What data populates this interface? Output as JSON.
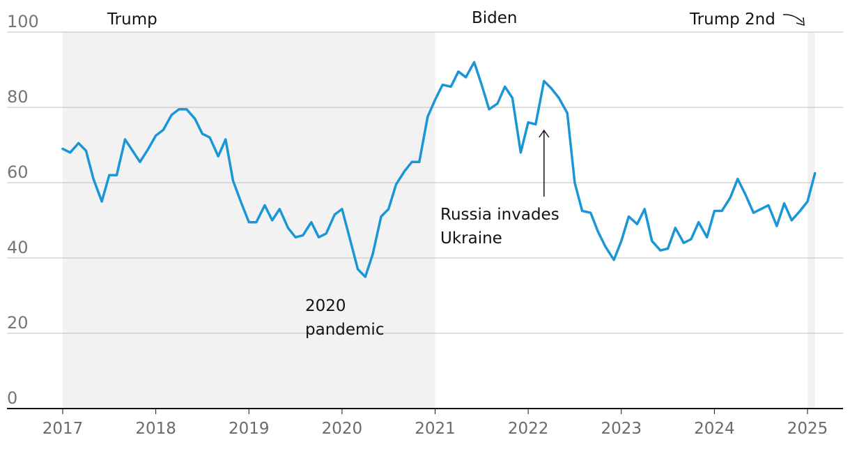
{
  "chart_data": {
    "type": "line",
    "title": "",
    "xlabel": "",
    "ylabel": "",
    "ylim": [
      0,
      100
    ],
    "xlim": [
      2017,
      2025.4
    ],
    "yticks": [
      0,
      20,
      40,
      60,
      80,
      100
    ],
    "ytick_labels": [
      "0",
      "20",
      "40",
      "60",
      "80",
      "100"
    ],
    "xticks": [
      2017,
      2018,
      2019,
      2020,
      2021,
      2022,
      2023,
      2024,
      2025
    ],
    "xtick_labels": [
      "2017",
      "2018",
      "2019",
      "2020",
      "2021",
      "2022",
      "2023",
      "2024",
      "2025"
    ],
    "grid": true,
    "line_color": "#1a96d6",
    "shade_color": "#f2f2f2",
    "periods": [
      {
        "label": "Trump",
        "start": 2017.0,
        "end": 2021.0,
        "shaded": true
      },
      {
        "label": "Biden",
        "start": 2021.0,
        "end": 2025.0,
        "shaded": false
      },
      {
        "label": "Trump 2nd",
        "start": 2025.0,
        "end": 2025.08,
        "shaded": true
      }
    ],
    "annotations": [
      {
        "lines": [
          "2020",
          "pandemic"
        ],
        "x": 2020.25
      },
      {
        "lines": [
          "Russia invades",
          "Ukraine"
        ],
        "x": 2022.17
      }
    ],
    "series": [
      {
        "x": [
          2017.0,
          2017.08,
          2017.17,
          2017.25,
          2017.33,
          2017.42,
          2017.5,
          2017.58,
          2017.67,
          2017.75,
          2017.83,
          2017.92,
          2018.0,
          2018.08,
          2018.17,
          2018.25,
          2018.33,
          2018.42,
          2018.5,
          2018.58,
          2018.67,
          2018.75,
          2018.83,
          2018.92,
          2019.0,
          2019.08,
          2019.17,
          2019.25,
          2019.33,
          2019.42,
          2019.5,
          2019.58,
          2019.67,
          2019.75,
          2019.83,
          2019.92,
          2020.0,
          2020.08,
          2020.17,
          2020.25,
          2020.33,
          2020.42,
          2020.5,
          2020.58,
          2020.67,
          2020.75,
          2020.83,
          2020.92,
          2021.0,
          2021.08,
          2021.17,
          2021.25,
          2021.33,
          2021.42,
          2021.5,
          2021.58,
          2021.67,
          2021.75,
          2021.83,
          2021.92,
          2022.0,
          2022.08,
          2022.17,
          2022.25,
          2022.33,
          2022.42,
          2022.5,
          2022.58,
          2022.67,
          2022.75,
          2022.83,
          2022.92,
          2023.0,
          2023.08,
          2023.17,
          2023.25,
          2023.33,
          2023.42,
          2023.5,
          2023.58,
          2023.67,
          2023.75,
          2023.83,
          2023.92,
          2024.0,
          2024.08,
          2024.17,
          2024.25,
          2024.33,
          2024.42,
          2024.5,
          2024.58,
          2024.67,
          2024.75,
          2024.83,
          2024.92,
          2025.0,
          2025.08
        ],
        "y": [
          69,
          68,
          70.5,
          68.5,
          61,
          55,
          62,
          62,
          71.5,
          68.5,
          65.5,
          69,
          72.5,
          74,
          78,
          79.5,
          79.5,
          77,
          73,
          72,
          67,
          71.5,
          60.5,
          54.5,
          49.5,
          49.5,
          54,
          50,
          53,
          48,
          45.5,
          46,
          49.5,
          45.5,
          46.5,
          51.5,
          53,
          45.5,
          37,
          35,
          41,
          51,
          53,
          59.5,
          63,
          65.5,
          65.5,
          77.5,
          82,
          86,
          85.5,
          89.5,
          88,
          92,
          86,
          79.5,
          81,
          85.5,
          82.5,
          68,
          76,
          75.5,
          87,
          85,
          82.5,
          78.5,
          60,
          52.5,
          52,
          47,
          43,
          39.5,
          44.5,
          51,
          49,
          53,
          44.5,
          42,
          42.5,
          48,
          44,
          45,
          49.5,
          45.5,
          52.5,
          52.5,
          56,
          61,
          57,
          52,
          53,
          54,
          48.5,
          54.5,
          50,
          52.5,
          55,
          62.5
        ]
      }
    ]
  }
}
